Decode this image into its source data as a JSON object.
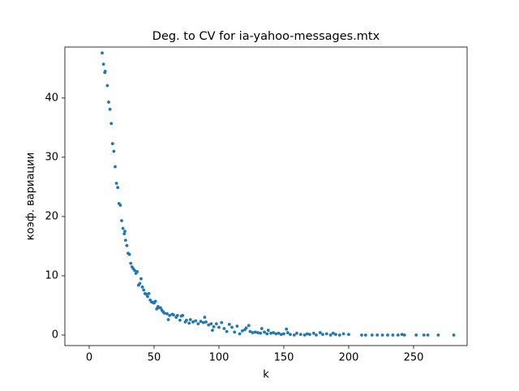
{
  "chart_data": {
    "type": "scatter",
    "title": "Deg. to CV for ia-yahoo-messages.mtx",
    "xlabel": "k",
    "ylabel": "коэф. вариации",
    "color": "#1f77b4",
    "x": [
      10,
      11,
      12,
      12.3,
      14,
      15,
      16,
      17,
      18,
      19,
      20,
      21,
      22,
      23,
      24,
      25,
      26,
      27,
      27.5,
      28,
      29,
      30,
      31,
      32,
      33,
      34,
      35,
      36,
      37,
      38,
      39,
      40,
      41,
      42,
      43,
      44,
      45,
      46,
      47,
      48,
      49,
      50,
      51,
      52,
      53,
      54,
      55,
      56,
      57,
      58,
      60,
      61,
      62,
      64,
      65,
      67,
      68,
      70,
      71,
      72,
      74,
      75,
      77,
      78,
      80,
      82,
      84,
      86,
      88,
      89,
      90,
      92,
      94,
      95,
      96,
      98,
      100,
      102,
      104,
      106,
      108,
      110,
      112,
      114,
      116,
      118,
      120,
      121,
      123,
      124,
      126,
      128,
      130,
      132,
      133,
      135,
      137,
      138,
      140,
      142,
      144,
      146,
      148,
      150,
      152,
      153,
      155,
      158,
      160,
      163,
      166,
      168,
      170,
      173,
      175,
      178,
      180,
      183,
      186,
      188,
      190,
      193,
      196,
      200,
      210,
      213,
      218,
      222,
      226,
      230,
      234,
      238,
      241,
      243,
      252,
      258,
      261,
      269,
      281
    ],
    "values": [
      47.6,
      45.7,
      44.3,
      44.5,
      42.1,
      39.3,
      38.1,
      35.7,
      32.3,
      31.0,
      28.4,
      25.6,
      24.9,
      22.2,
      21.9,
      19.3,
      18.0,
      17.1,
      17.5,
      16.0,
      15.1,
      13.8,
      13.6,
      12.1,
      11.5,
      11.2,
      10.9,
      10.4,
      10.7,
      8.4,
      8.7,
      9.5,
      8.1,
      7.6,
      7.0,
      6.9,
      6.5,
      7.0,
      5.9,
      5.6,
      5.5,
      5.4,
      5.7,
      4.4,
      4.8,
      4.6,
      4.6,
      4.2,
      3.9,
      3.7,
      3.6,
      2.6,
      3.3,
      3.5,
      3.4,
      3.0,
      3.3,
      2.5,
      3.2,
      3.3,
      2.2,
      2.5,
      2.0,
      2.6,
      2.2,
      2.4,
      1.9,
      2.3,
      2.1,
      3.0,
      2.2,
      1.7,
      1.9,
      0.8,
      1.4,
      1.9,
      1.3,
      2.1,
      1.1,
      0.6,
      1.8,
      1.3,
      0.5,
      1.5,
      0.2,
      0.7,
      0.9,
      1.2,
      1.6,
      0.6,
      0.4,
      0.5,
      0.4,
      0.3,
      1.1,
      0.5,
      0.2,
      0.8,
      0.3,
      0.4,
      0.2,
      0.3,
      0.1,
      0.2,
      1.0,
      0.4,
      0.1,
      0.0,
      0.3,
      0.1,
      0.0,
      0.2,
      0.1,
      0.3,
      0.0,
      0.4,
      0.1,
      0.2,
      0.0,
      0.3,
      0.1,
      0.0,
      0.2,
      0.1,
      0.0,
      0.0,
      0.0,
      0.0,
      0.0,
      0.0,
      0.0,
      0.0,
      0.1,
      0.0,
      0.0,
      0.0,
      0.0,
      0.0,
      0.0
    ],
    "xlim": [
      -18.75,
      291.25
    ],
    "ylim": [
      -1.78,
      48.6
    ],
    "xticks": [
      0,
      50,
      100,
      150,
      200,
      250
    ],
    "yticks": [
      0,
      10,
      20,
      30,
      40
    ]
  }
}
